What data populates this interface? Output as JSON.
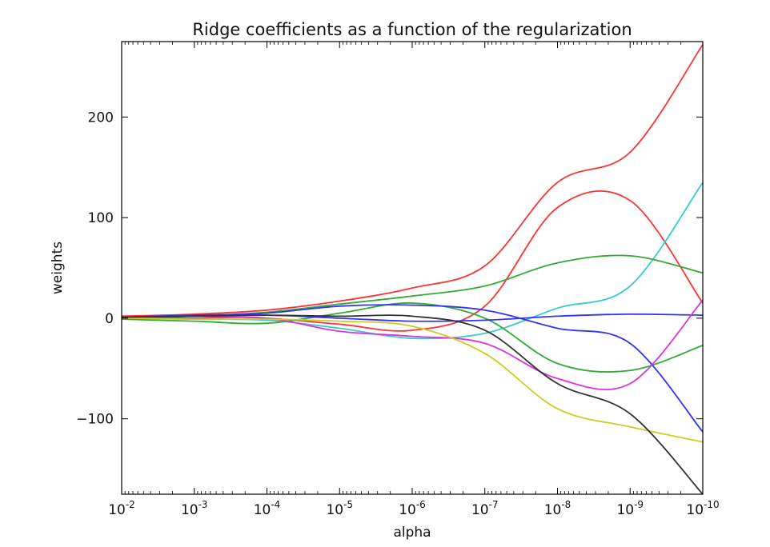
{
  "chart_data": {
    "type": "line",
    "title": "Ridge coefficients as a function of the regularization",
    "xlabel": "alpha",
    "ylabel": "weights",
    "xscale": "log",
    "xaxis_reversed": true,
    "xlim": [
      0.01,
      1e-10
    ],
    "ylim": [
      -175,
      275
    ],
    "grid": false,
    "legend": "none",
    "x_ticks": [
      {
        "value": 0.01,
        "base": "10",
        "exp": "-2"
      },
      {
        "value": 0.001,
        "base": "10",
        "exp": "-3"
      },
      {
        "value": 0.0001,
        "base": "10",
        "exp": "-4"
      },
      {
        "value": 1e-05,
        "base": "10",
        "exp": "-5"
      },
      {
        "value": 1e-06,
        "base": "10",
        "exp": "-6"
      },
      {
        "value": 1e-07,
        "base": "10",
        "exp": "-7"
      },
      {
        "value": 1e-08,
        "base": "10",
        "exp": "-8"
      },
      {
        "value": 1e-09,
        "base": "10",
        "exp": "-9"
      },
      {
        "value": 1e-10,
        "base": "10",
        "exp": "-10"
      }
    ],
    "y_ticks": [
      {
        "value": 200,
        "label": "200"
      },
      {
        "value": 100,
        "label": "100"
      },
      {
        "value": 0,
        "label": "0"
      },
      {
        "value": -100,
        "label": "−100"
      }
    ],
    "x": [
      0.01,
      0.001,
      0.0001,
      1e-05,
      1e-06,
      1e-07,
      1e-08,
      1e-09,
      1e-10
    ],
    "series": [
      {
        "color": "#ff3333",
        "values": [
          2,
          4,
          8,
          17,
          30,
          52,
          135,
          165,
          272
        ]
      },
      {
        "color": "#ff3333",
        "values": [
          2,
          2,
          0,
          -6,
          -12,
          12,
          110,
          117,
          15
        ]
      },
      {
        "color": "#33cccc",
        "values": [
          0,
          -1,
          -2,
          -10,
          -20,
          -15,
          10,
          32,
          135
        ]
      },
      {
        "color": "#33aa33",
        "values": [
          0,
          2,
          6,
          14,
          22,
          32,
          55,
          62,
          45
        ]
      },
      {
        "color": "#33aa33",
        "values": [
          -1,
          -3,
          -5,
          5,
          15,
          0,
          -45,
          -52,
          -27
        ]
      },
      {
        "color": "#3333ff",
        "values": [
          1,
          3,
          5,
          12,
          13,
          8,
          -10,
          -25,
          -113
        ]
      },
      {
        "color": "#3333ff",
        "values": [
          1,
          2,
          3,
          0,
          -3,
          -2,
          2,
          4,
          3
        ]
      },
      {
        "color": "#dd33dd",
        "values": [
          0,
          0,
          0,
          -13,
          -18,
          -25,
          -60,
          -65,
          18
        ]
      },
      {
        "color": "#cccc22",
        "values": [
          0,
          -1,
          -1,
          -3,
          -8,
          -35,
          -90,
          -108,
          -123
        ]
      },
      {
        "color": "#333333",
        "values": [
          1,
          2,
          3,
          2,
          2,
          -12,
          -65,
          -95,
          -175
        ]
      }
    ]
  }
}
